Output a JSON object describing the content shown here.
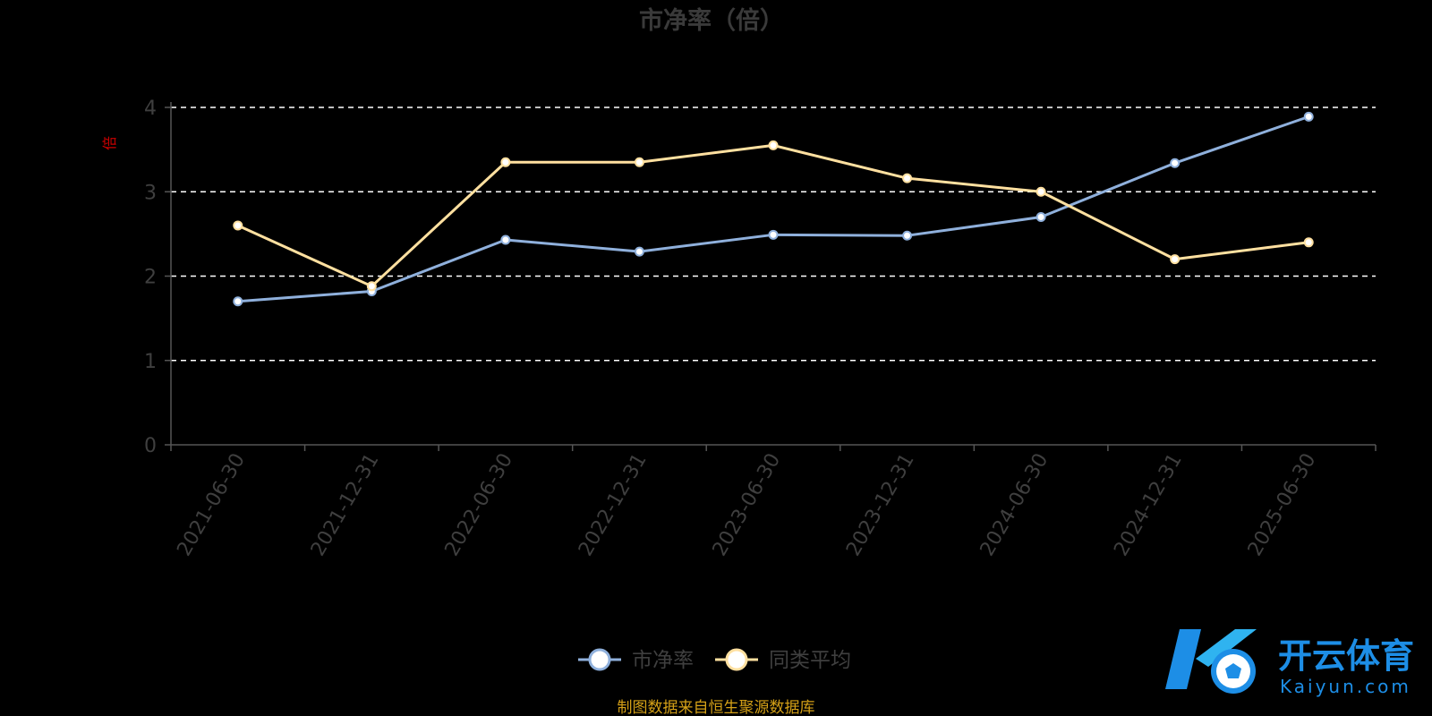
{
  "chart_data": {
    "type": "line",
    "title": "市净率（倍）",
    "ylabel": "倍",
    "xlabel": "",
    "categories": [
      "2021-06-30",
      "2021-12-31",
      "2022-06-30",
      "2022-12-31",
      "2023-06-30",
      "2023-12-31",
      "2024-06-30",
      "2024-12-31",
      "2025-06-30"
    ],
    "yticks": [
      "0",
      "1",
      "2",
      "3",
      "4"
    ],
    "ylim": [
      0,
      4
    ],
    "grid": "horizontal-dashed",
    "legend_position": "bottom-center",
    "series": [
      {
        "name": "市净率",
        "color": "#8fb0dc",
        "values": [
          1.7,
          1.82,
          2.43,
          2.29,
          2.49,
          2.48,
          2.7,
          3.34,
          3.89
        ]
      },
      {
        "name": "同类平均",
        "color": "#ffe0a0",
        "values": [
          2.6,
          1.88,
          3.35,
          3.35,
          3.55,
          3.16,
          3.0,
          2.2,
          2.4
        ]
      }
    ]
  },
  "source_note": "制图数据来自恒生聚源数据库",
  "watermark": {
    "brand_cn": "开云体育",
    "brand_en": "Kaiyun.com",
    "logo_letter": "K"
  }
}
